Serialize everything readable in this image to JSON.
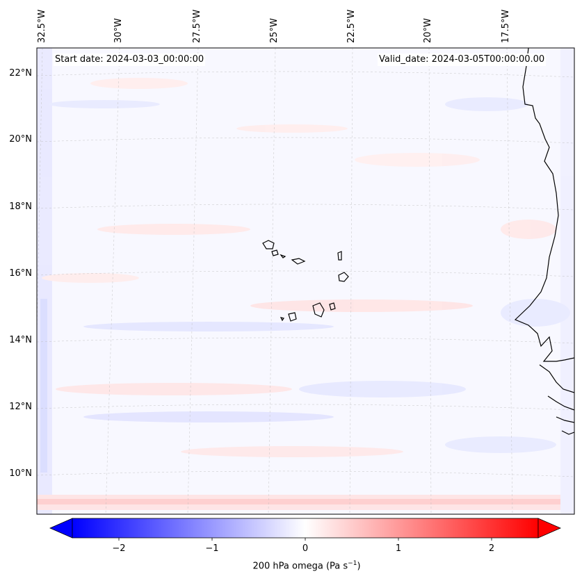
{
  "map": {
    "start_date_text": "Start date: 2024-03-03_00:00:00",
    "valid_date_text": "Valid_date: 2024-03-05T00:00:00.00",
    "longitude_labels": [
      "32.5°W",
      "30°W",
      "27.5°W",
      "25°W",
      "22.5°W",
      "20°W",
      "17.5°W"
    ],
    "latitude_labels": [
      "22°N",
      "20°N",
      "18°N",
      "16°N",
      "14°N",
      "12°N",
      "10°N"
    ],
    "variable": "200 hPa omega",
    "units": "Pa s⁻¹"
  },
  "colorbar": {
    "tick_labels": [
      "−2",
      "−1",
      "0",
      "1",
      "2"
    ],
    "tick_values": [
      -2,
      -1,
      0,
      1,
      2
    ],
    "min": -2.5,
    "max": 2.5,
    "label_prefix": "200 hPa omega (Pa s",
    "label_exponent": "−1",
    "label_suffix": ")",
    "colors": {
      "negative": "#0000ff",
      "zero": "#ffffff",
      "positive": "#ff0000"
    }
  }
}
